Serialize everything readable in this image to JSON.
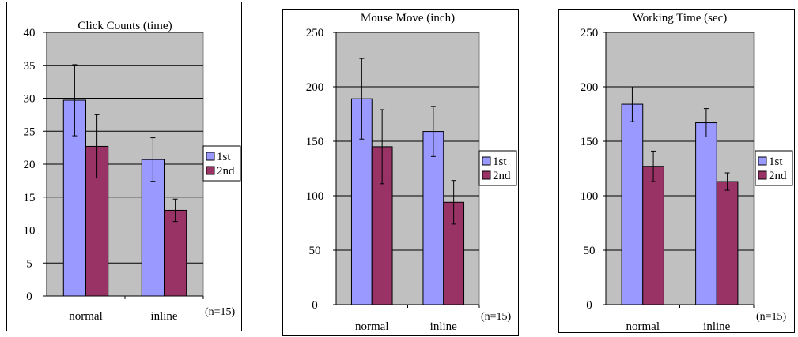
{
  "colors": {
    "plot_bg": "#c0c0c0",
    "series_1st": "#9999ff",
    "series_2nd": "#993366",
    "gridline": "#000000"
  },
  "chart_data": [
    {
      "type": "bar",
      "title": "Click Counts (time)",
      "categories": [
        "normal",
        "inline"
      ],
      "series": [
        {
          "name": "1st",
          "values": [
            29.7,
            20.7
          ],
          "error": [
            5.4,
            3.3
          ]
        },
        {
          "name": "2nd",
          "values": [
            22.7,
            13.0
          ],
          "error": [
            4.8,
            1.7
          ]
        }
      ],
      "ylim": [
        0,
        40
      ],
      "yticks": [
        0,
        5,
        10,
        15,
        20,
        25,
        30,
        35,
        40
      ],
      "grid": true,
      "legend": "right",
      "note": "(n=15)"
    },
    {
      "type": "bar",
      "title": "Mouse Move (inch)",
      "categories": [
        "normal",
        "inline"
      ],
      "series": [
        {
          "name": "1st",
          "values": [
            189,
            159
          ],
          "error": [
            37,
            23
          ]
        },
        {
          "name": "2nd",
          "values": [
            145,
            94
          ],
          "error": [
            34,
            20
          ]
        }
      ],
      "ylim": [
        0,
        250
      ],
      "yticks": [
        0,
        50,
        100,
        150,
        200,
        250
      ],
      "grid": true,
      "legend": "right",
      "note": "(n=15)"
    },
    {
      "type": "bar",
      "title": "Working Time (sec)",
      "categories": [
        "normal",
        "inline"
      ],
      "series": [
        {
          "name": "1st",
          "values": [
            184,
            167
          ],
          "error": [
            16,
            13
          ]
        },
        {
          "name": "2nd",
          "values": [
            127,
            113
          ],
          "error": [
            14,
            8
          ]
        }
      ],
      "ylim": [
        0,
        250
      ],
      "yticks": [
        0,
        50,
        100,
        150,
        200,
        250
      ],
      "grid": true,
      "legend": "right",
      "note": "(n=15)"
    }
  ]
}
